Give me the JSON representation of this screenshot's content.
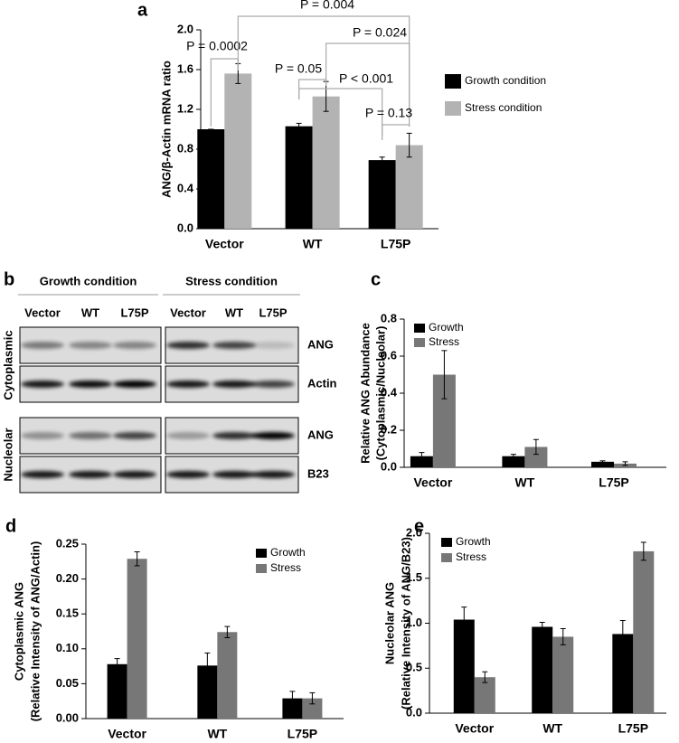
{
  "chart_data": [
    {
      "type": "bar",
      "panel": "a",
      "ylabel": [
        "ANG/β-Actin mRNA ratio"
      ],
      "categories": [
        "Vector",
        "WT",
        "L75P"
      ],
      "series": [
        {
          "name": "Growth condition",
          "color": "#000000",
          "values": [
            1.0,
            1.03,
            0.69
          ],
          "errors": [
            0,
            0.03,
            0.03
          ]
        },
        {
          "name": "Stress condition",
          "color": "#b3b3b3",
          "values": [
            1.56,
            1.33,
            0.84
          ],
          "errors": [
            0.1,
            0.15,
            0.12
          ]
        }
      ],
      "ylim": [
        0,
        2
      ],
      "yticks": [
        {
          "value": 0,
          "label": "0.0"
        },
        {
          "value": 0.4,
          "label": "0.4"
        },
        {
          "value": 0.8,
          "label": "0.8"
        },
        {
          "value": 1.2,
          "label": "1.2"
        },
        {
          "value": 1.6,
          "label": "1.6"
        },
        {
          "value": 2,
          "label": "2.0"
        }
      ],
      "annotations": [
        "P = 0.0002",
        "P = 0.004",
        "P = 0.024",
        "P = 0.05",
        "P < 0.001",
        "P = 0.13"
      ]
    },
    {
      "type": "bar",
      "panel": "c",
      "ylabel": [
        "Relative ANG Abundance",
        "(Cytoplasmic/Nucleolar)"
      ],
      "categories": [
        "Vector",
        "WT",
        "L75P"
      ],
      "series": [
        {
          "name": "Growth",
          "color": "#000000",
          "values": [
            0.06,
            0.06,
            0.03
          ],
          "errors": [
            0.02,
            0.01,
            0.005
          ]
        },
        {
          "name": "Stress",
          "color": "#777777",
          "values": [
            0.5,
            0.11,
            0.02
          ],
          "errors": [
            0.13,
            0.04,
            0.01
          ]
        }
      ],
      "ylim": [
        0,
        0.8
      ],
      "yticks": [
        {
          "value": 0,
          "label": "0.0"
        },
        {
          "value": 0.2,
          "label": "0.2"
        },
        {
          "value": 0.4,
          "label": "0.4"
        },
        {
          "value": 0.6,
          "label": "0.6"
        },
        {
          "value": 0.8,
          "label": "0.8"
        }
      ]
    },
    {
      "type": "bar",
      "panel": "d",
      "ylabel": [
        "Cytoplasmic ANG",
        "(Relative Intensity of ANG/Actin)"
      ],
      "categories": [
        "Vector",
        "WT",
        "L75P"
      ],
      "series": [
        {
          "name": "Growth",
          "color": "#000000",
          "values": [
            0.078,
            0.076,
            0.029
          ],
          "errors": [
            0.008,
            0.018,
            0.01
          ]
        },
        {
          "name": "Stress",
          "color": "#777777",
          "values": [
            0.229,
            0.124,
            0.029
          ],
          "errors": [
            0.01,
            0.008,
            0.008
          ]
        }
      ],
      "ylim": [
        0,
        0.25
      ],
      "yticks": [
        {
          "value": 0,
          "label": "0.00"
        },
        {
          "value": 0.05,
          "label": "0.05"
        },
        {
          "value": 0.1,
          "label": "0.10"
        },
        {
          "value": 0.15,
          "label": "0.15"
        },
        {
          "value": 0.2,
          "label": "0.20"
        },
        {
          "value": 0.25,
          "label": "0.25"
        }
      ]
    },
    {
      "type": "bar",
      "panel": "e",
      "ylabel": [
        "Nucleolar ANG",
        "(Relative Intensity of ANG/B23)"
      ],
      "categories": [
        "Vector",
        "WT",
        "L75P"
      ],
      "series": [
        {
          "name": "Growth",
          "color": "#000000",
          "values": [
            1.04,
            0.96,
            0.88
          ],
          "errors": [
            0.14,
            0.05,
            0.15
          ]
        },
        {
          "name": "Stress",
          "color": "#777777",
          "values": [
            0.4,
            0.85,
            1.8
          ],
          "errors": [
            0.06,
            0.09,
            0.1
          ]
        }
      ],
      "ylim": [
        0,
        2
      ],
      "yticks": [
        {
          "value": 0,
          "label": "0.0"
        },
        {
          "value": 0.5,
          "label": "0.5"
        },
        {
          "value": 1,
          "label": "1.0"
        },
        {
          "value": 1.5,
          "label": "1.5"
        },
        {
          "value": 2,
          "label": "2.0"
        }
      ]
    }
  ],
  "blot": {
    "panel": "b",
    "conditions": [
      "Growth condition",
      "Stress condition"
    ],
    "lanes": [
      "Vector",
      "WT",
      "L75P",
      "Vector",
      "WT",
      "L75P"
    ],
    "rows": [
      "ANG",
      "Actin",
      "ANG",
      "B23"
    ],
    "fractions": [
      "Cytoplasmic",
      "Nucleolar"
    ]
  }
}
